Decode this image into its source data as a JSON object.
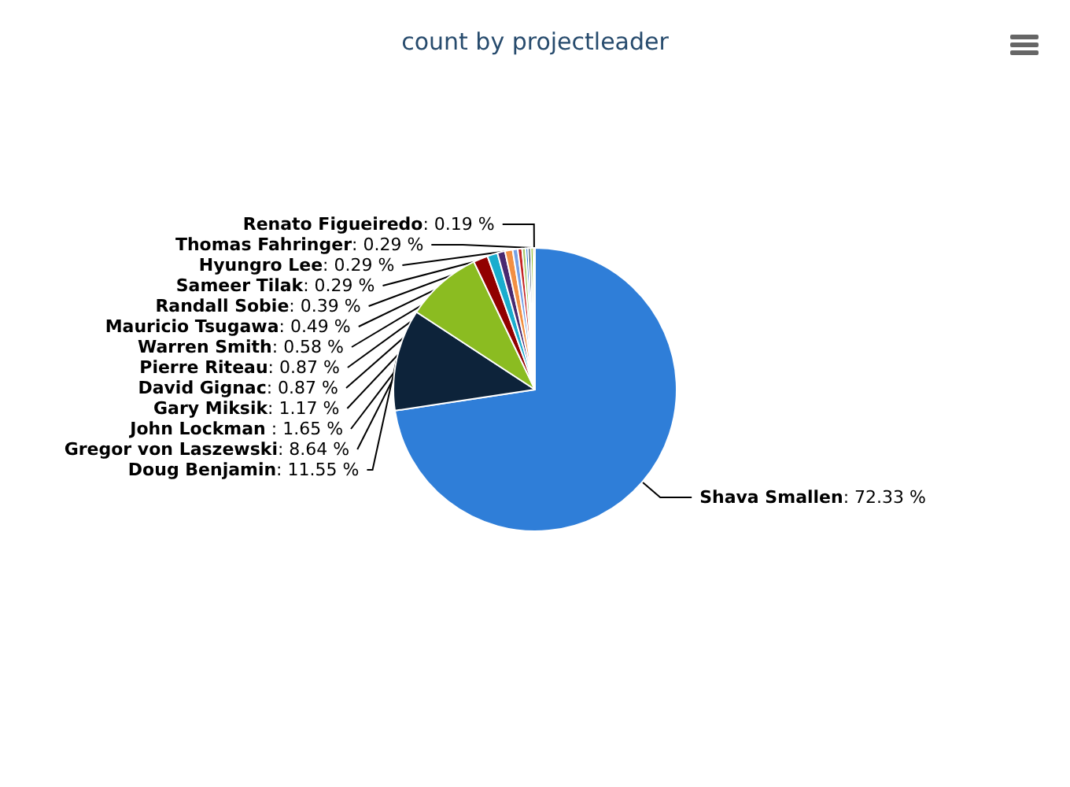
{
  "chart_data": {
    "type": "pie",
    "title": "count by projectleader",
    "categories": [
      "Shava Smallen",
      "Doug Benjamin",
      "Gregor von Laszewski",
      "John Lockman",
      "Gary Miksik",
      "David Gignac",
      "Pierre Riteau",
      "Warren Smith",
      "Mauricio Tsugawa",
      "Randall Sobie",
      "Sameer Tilak",
      "Hyungro Lee",
      "Thomas Fahringer",
      "Renato Figueiredo"
    ],
    "values": [
      72.33,
      11.55,
      8.64,
      1.65,
      1.17,
      0.87,
      0.87,
      0.58,
      0.49,
      0.39,
      0.29,
      0.29,
      0.29,
      0.19
    ],
    "colors": [
      "#2f7ed8",
      "#0d233a",
      "#8bbc21",
      "#910000",
      "#1aadce",
      "#492970",
      "#f28f43",
      "#77a1e5",
      "#c42525",
      "#a6c96a",
      "#2f7ed8",
      "#0d233a",
      "#8bbc21",
      "#910000"
    ],
    "value_labels": [
      ": 72.33 %",
      ": 11.55 %",
      ": 8.64 %",
      " : 1.65 %",
      ": 1.17 %",
      ": 0.87 %",
      ": 0.87 %",
      ": 0.58 %",
      ": 0.49 %",
      ": 0.39 %",
      ": 0.29 %",
      ": 0.29 %",
      ": 0.29 %",
      ": 0.19 %"
    ],
    "legend": false
  }
}
